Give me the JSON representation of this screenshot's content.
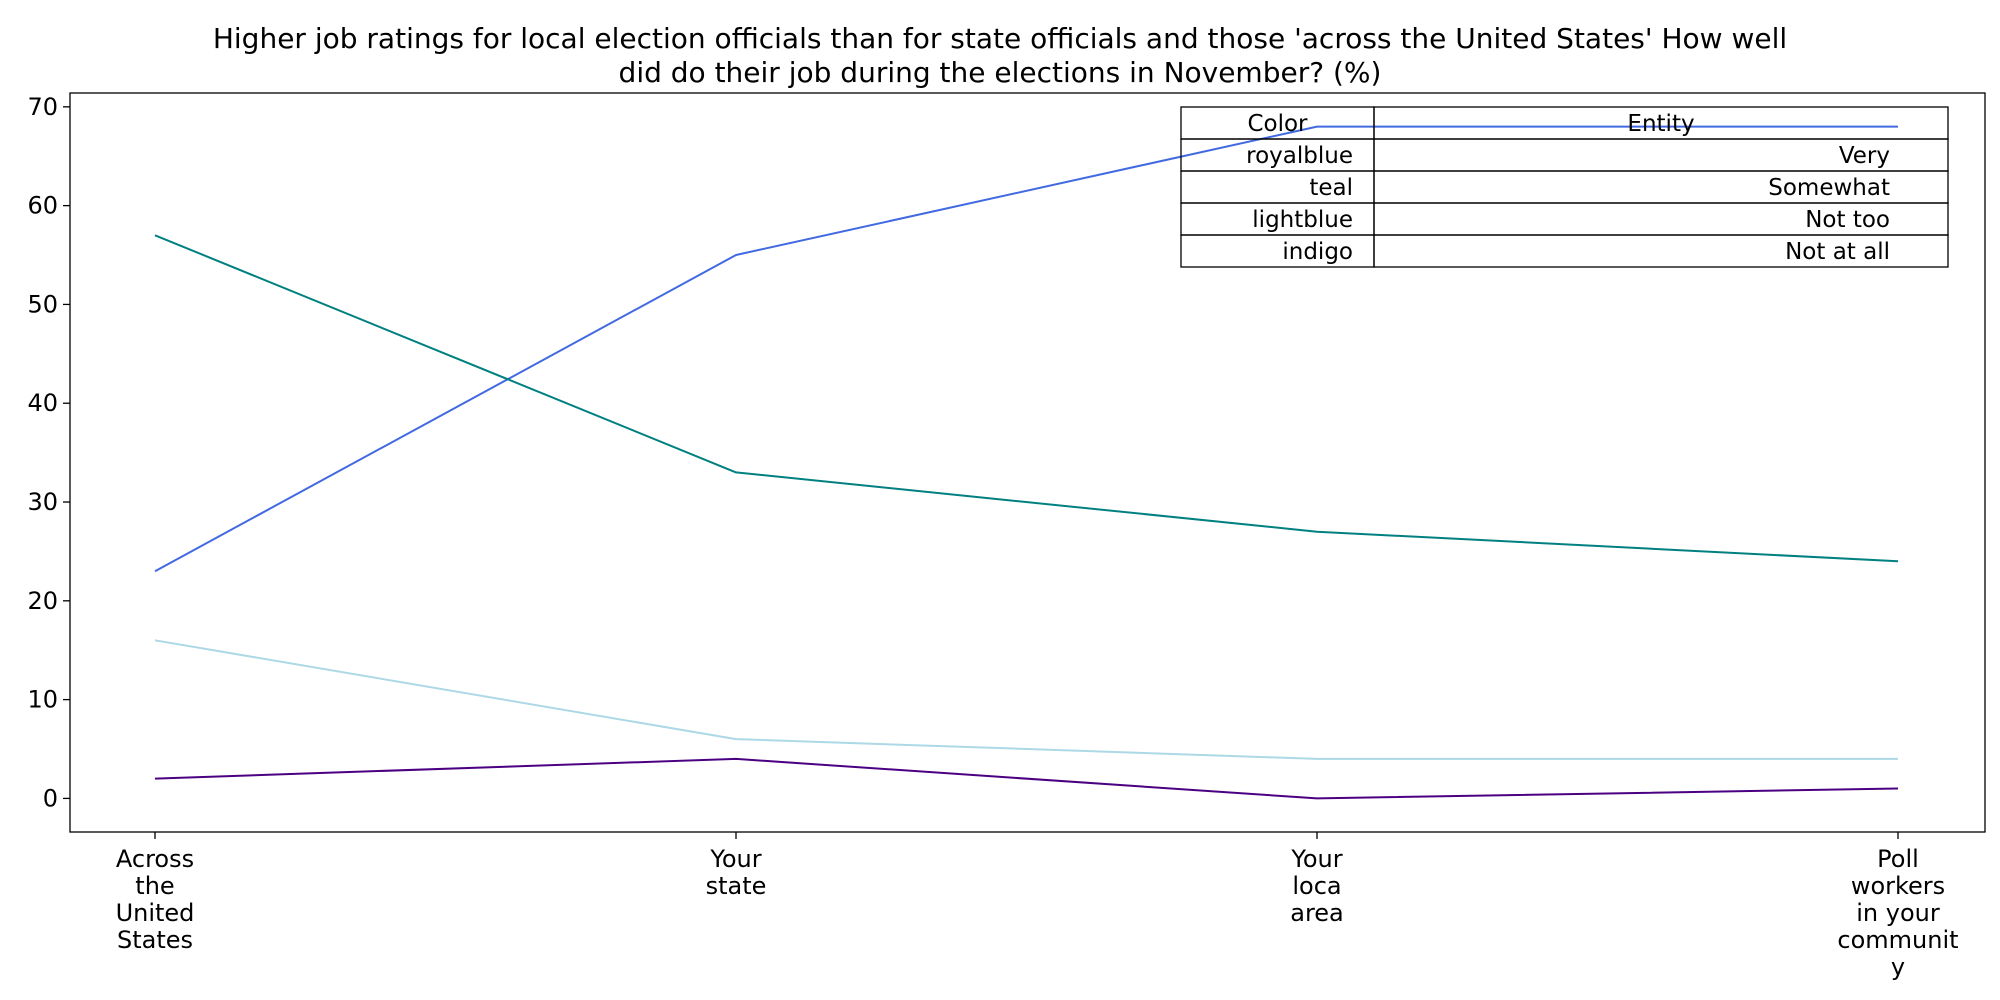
{
  "chart_data": {
    "type": "line",
    "title": "Higher job ratings for local election officials than for state officials and those 'across the United States' How well did do their job during the elections in November? (%)",
    "title_lines": [
      "Higher job ratings for local election officials than for state officials and those 'across the United States' How well",
      "did do their job during the elections in November? (%)"
    ],
    "categories": [
      "Across the United States",
      "Your state",
      "Your loca area",
      "Poll workers in your community"
    ],
    "category_label_lines": [
      [
        "Across",
        "the",
        "United",
        "States"
      ],
      [
        "Your",
        "state"
      ],
      [
        "Your",
        "loca",
        "area"
      ],
      [
        "Poll",
        "workers",
        "in your",
        "communit",
        "y"
      ]
    ],
    "series": [
      {
        "name": "Very",
        "color": "#4169e1",
        "values": [
          23,
          55,
          68,
          68
        ]
      },
      {
        "name": "Somewhat",
        "color": "#008080",
        "values": [
          57,
          33,
          27,
          24
        ]
      },
      {
        "name": "Not too",
        "color": "#add8e6",
        "values": [
          16,
          6,
          4,
          4
        ]
      },
      {
        "name": "Not at all",
        "color": "#4b0082",
        "values": [
          2,
          4,
          0,
          1
        ]
      }
    ],
    "ylim": [
      -3.4,
      71.4
    ],
    "yticks": [
      0,
      10,
      20,
      30,
      40,
      50,
      60,
      70
    ],
    "xlabel": "",
    "ylabel": "",
    "grid": false,
    "legend": {
      "placement": "top-right",
      "header": [
        "Color",
        "Entity"
      ],
      "rows": [
        [
          "royalblue",
          "Very"
        ],
        [
          "teal",
          "Somewhat"
        ],
        [
          "lightblue",
          "Not too"
        ],
        [
          "indigo",
          "Not at all"
        ]
      ]
    }
  }
}
